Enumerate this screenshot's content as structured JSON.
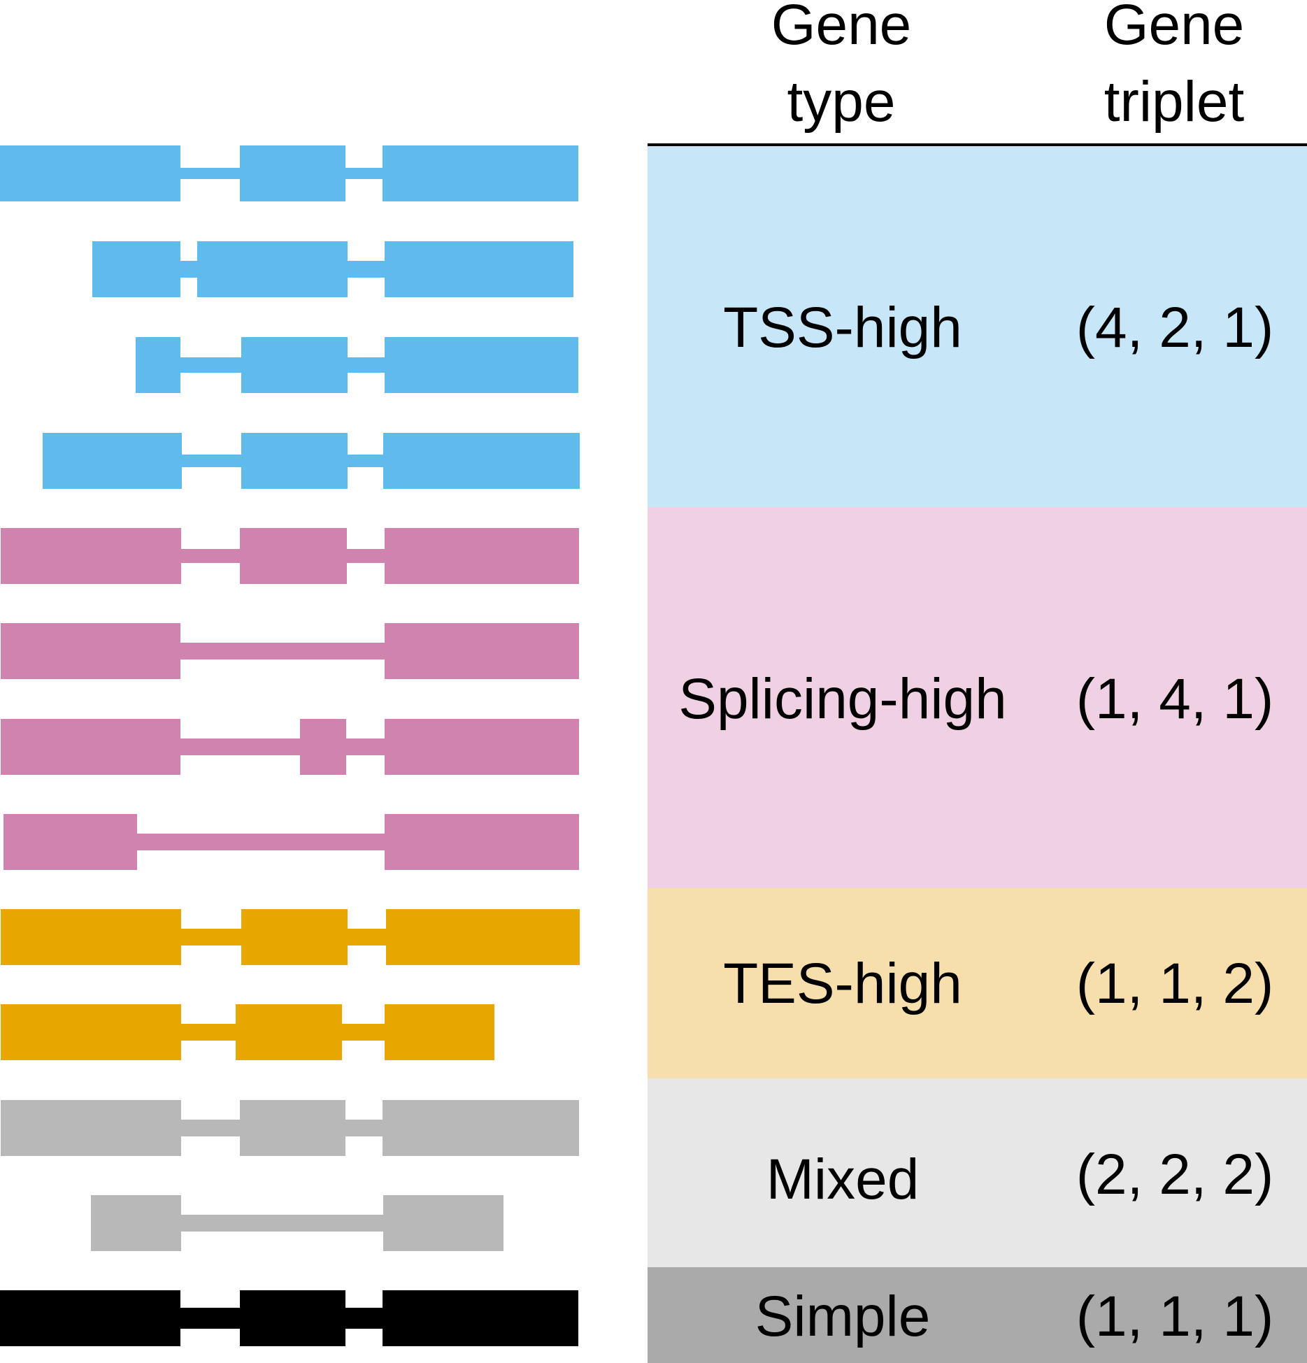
{
  "header": {
    "gene_type": [
      "Gene",
      "type"
    ],
    "gene_triplet": [
      "Gene",
      "triplet"
    ]
  },
  "colors": {
    "tss": "#5EBBEC",
    "splicing": "#D183B0",
    "tes": "#E8A600",
    "mixed": "#B8B8B8",
    "simple": "#000000",
    "tss_bg": "#C7E6F7",
    "splicing_bg": "#F0D1E3",
    "tes_bg": "#F7DFAD",
    "mixed_bg": "#E7E7E7",
    "simple_bg": "#AAAAAA"
  },
  "groups": [
    {
      "key": "tss",
      "gene_type": "TSS-high",
      "triplet": "(4, 2, 1)"
    },
    {
      "key": "splicing",
      "gene_type": "Splicing-high",
      "triplet": "(1, 4, 1)"
    },
    {
      "key": "tes",
      "gene_type": "TES-high",
      "triplet": "(1, 1, 2)"
    },
    {
      "key": "mixed",
      "gene_type": "Mixed",
      "triplet": "(2, 2, 2)"
    },
    {
      "key": "simple",
      "gene_type": "Simple",
      "triplet": "(1, 1, 1)"
    }
  ]
}
